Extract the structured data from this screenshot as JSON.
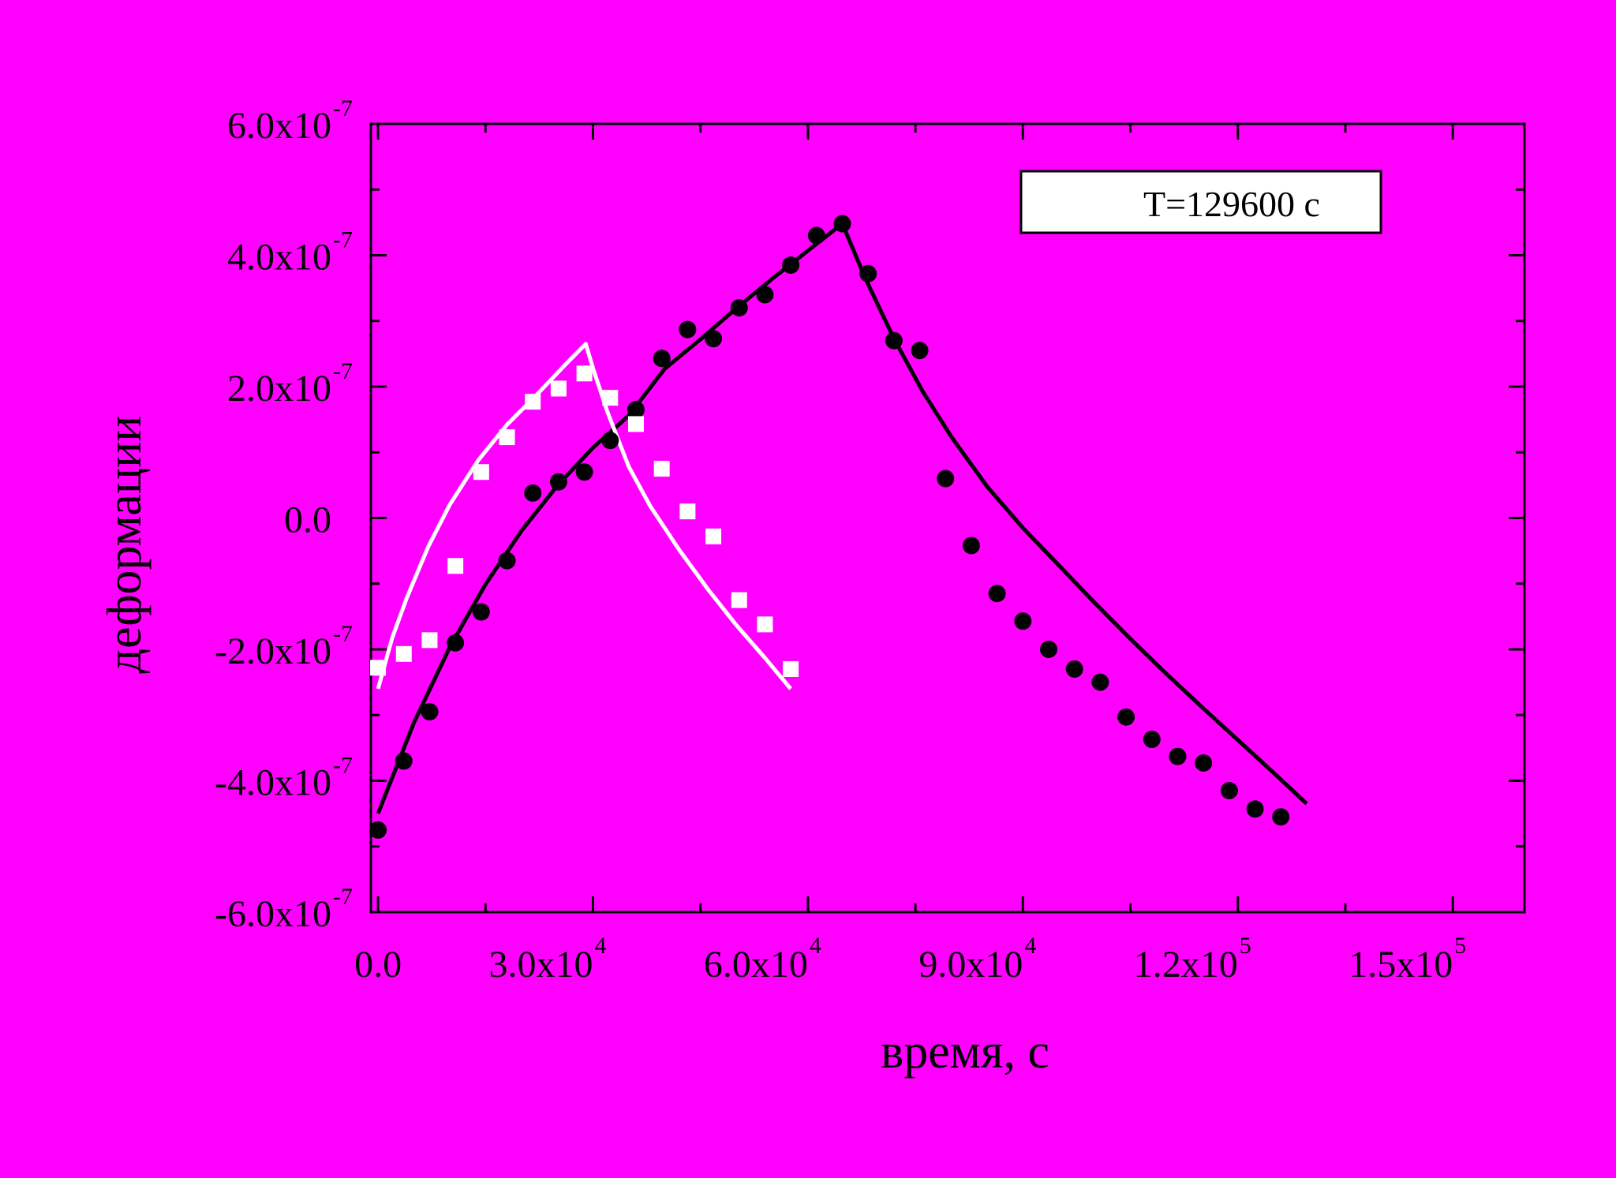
{
  "colors": {
    "background": "#ff00ff",
    "axes": "#000000",
    "black_series": "#000000",
    "white_series": "#ffffff",
    "legend_fill": "#ffffff"
  },
  "legend": {
    "text": "T=129600 c"
  },
  "chart_data": {
    "type": "scatter",
    "xlabel": "время, с",
    "ylabel": "деформации",
    "xlim": [
      -1000,
      160000
    ],
    "ylim": [
      -6e-07,
      6e-07
    ],
    "grid": false,
    "legend_placement": "top-right",
    "x_ticks": [
      {
        "value": 0,
        "mantissa": "0.0",
        "exp": ""
      },
      {
        "value": 30000,
        "mantissa": "3.0x10",
        "exp": "4"
      },
      {
        "value": 60000,
        "mantissa": "6.0x10",
        "exp": "4"
      },
      {
        "value": 90000,
        "mantissa": "9.0x10",
        "exp": "4"
      },
      {
        "value": 120000,
        "mantissa": "1.2x10",
        "exp": "5"
      },
      {
        "value": 150000,
        "mantissa": "1.5x10",
        "exp": "5"
      }
    ],
    "y_ticks": [
      {
        "value": 6e-07,
        "mantissa": "6.0x10",
        "exp": "-7"
      },
      {
        "value": 4e-07,
        "mantissa": "4.0x10",
        "exp": "-7"
      },
      {
        "value": 2e-07,
        "mantissa": "2.0x10",
        "exp": "-7"
      },
      {
        "value": 0,
        "mantissa": "0.0",
        "exp": ""
      },
      {
        "value": -2e-07,
        "mantissa": "-2.0x10",
        "exp": "-7"
      },
      {
        "value": -4e-07,
        "mantissa": "-4.0x10",
        "exp": "-7"
      },
      {
        "value": -6e-07,
        "mantissa": "-6.0x10",
        "exp": "-7"
      }
    ],
    "series": [
      {
        "kind": "points",
        "marker": "circle",
        "color": "#000000",
        "x": [
          0,
          3600,
          7200,
          10800,
          14400,
          18000,
          21600,
          25200,
          28800,
          32400,
          36000,
          39600,
          43200,
          46800,
          50400,
          54000,
          57600,
          61200,
          64800,
          68400,
          72000,
          75600,
          79200,
          82800,
          86400,
          90000,
          93600,
          97200,
          100800,
          104400,
          108000,
          111600,
          115200,
          118800,
          122400,
          126000
        ],
        "y": [
          -4.75e-07,
          -3.7e-07,
          -2.95e-07,
          -1.9e-07,
          -1.43e-07,
          -6.5e-08,
          3.8e-08,
          5.5e-08,
          7e-08,
          1.18e-07,
          1.65e-07,
          2.43e-07,
          2.87e-07,
          2.73e-07,
          3.2e-07,
          3.4e-07,
          3.85e-07,
          4.3e-07,
          4.48e-07,
          3.72e-07,
          2.7e-07,
          2.55e-07,
          6e-08,
          -4.2e-08,
          -1.15e-07,
          -1.57e-07,
          -2e-07,
          -2.3e-07,
          -2.5e-07,
          -3.03e-07,
          -3.37e-07,
          -3.63e-07,
          -3.73e-07,
          -4.15e-07,
          -4.43e-07,
          -4.55e-07
        ]
      },
      {
        "kind": "points",
        "marker": "square",
        "color": "#ffffff",
        "x": [
          0,
          3600,
          7200,
          10800,
          14400,
          18000,
          21600,
          25200,
          28800,
          32400,
          36000,
          39600,
          43200,
          46800,
          50400,
          54000,
          57600
        ],
        "y": [
          -2.28e-07,
          -2.07e-07,
          -1.86e-07,
          -7.3e-08,
          7e-08,
          1.23e-07,
          1.77e-07,
          1.97e-07,
          2.2e-07,
          1.83e-07,
          1.43e-07,
          7.5e-08,
          1e-08,
          -2.8e-08,
          -1.25e-07,
          -1.62e-07,
          -2.3e-07
        ]
      },
      {
        "kind": "line",
        "color": "#000000",
        "x": [
          0,
          5000,
          10000,
          15000,
          20000,
          25000,
          30000,
          35000,
          40000,
          45000,
          50000,
          55000,
          60000,
          64800,
          68000,
          72000,
          76000,
          80000,
          85000,
          90000,
          95000,
          100000,
          105000,
          110000,
          115000,
          120000,
          125000,
          129600
        ],
        "y": [
          -4.5e-07,
          -3.12e-07,
          -1.97e-07,
          -1.01e-07,
          -2e-08,
          4.9e-08,
          1.07e-07,
          1.56e-07,
          2.27e-07,
          2.72e-07,
          3.19e-07,
          3.64e-07,
          4.07e-07,
          4.48e-07,
          3.65e-07,
          2.73e-07,
          1.93e-07,
          1.24e-07,
          4.8e-08,
          -1.5e-08,
          -7.2e-08,
          -1.29e-07,
          -1.84e-07,
          -2.37e-07,
          -2.88e-07,
          -3.38e-07,
          -3.88e-07,
          -4.35e-07
        ]
      },
      {
        "kind": "line",
        "color": "#ffffff",
        "x": [
          0,
          2000,
          4000,
          7000,
          10000,
          14000,
          18000,
          22000,
          26000,
          29000,
          30000,
          32000,
          35000,
          38000,
          42000,
          46000,
          50000,
          54000,
          57600
        ],
        "y": [
          -2.6e-07,
          -1.82e-07,
          -1.22e-07,
          -4.4e-08,
          2e-08,
          8.8e-08,
          1.42e-07,
          1.86e-07,
          2.32e-07,
          2.65e-07,
          2.28e-07,
          1.62e-07,
          7.8e-08,
          1.8e-08,
          -4.8e-08,
          -1.08e-07,
          -1.63e-07,
          -2.13e-07,
          -2.6e-07
        ]
      }
    ]
  }
}
